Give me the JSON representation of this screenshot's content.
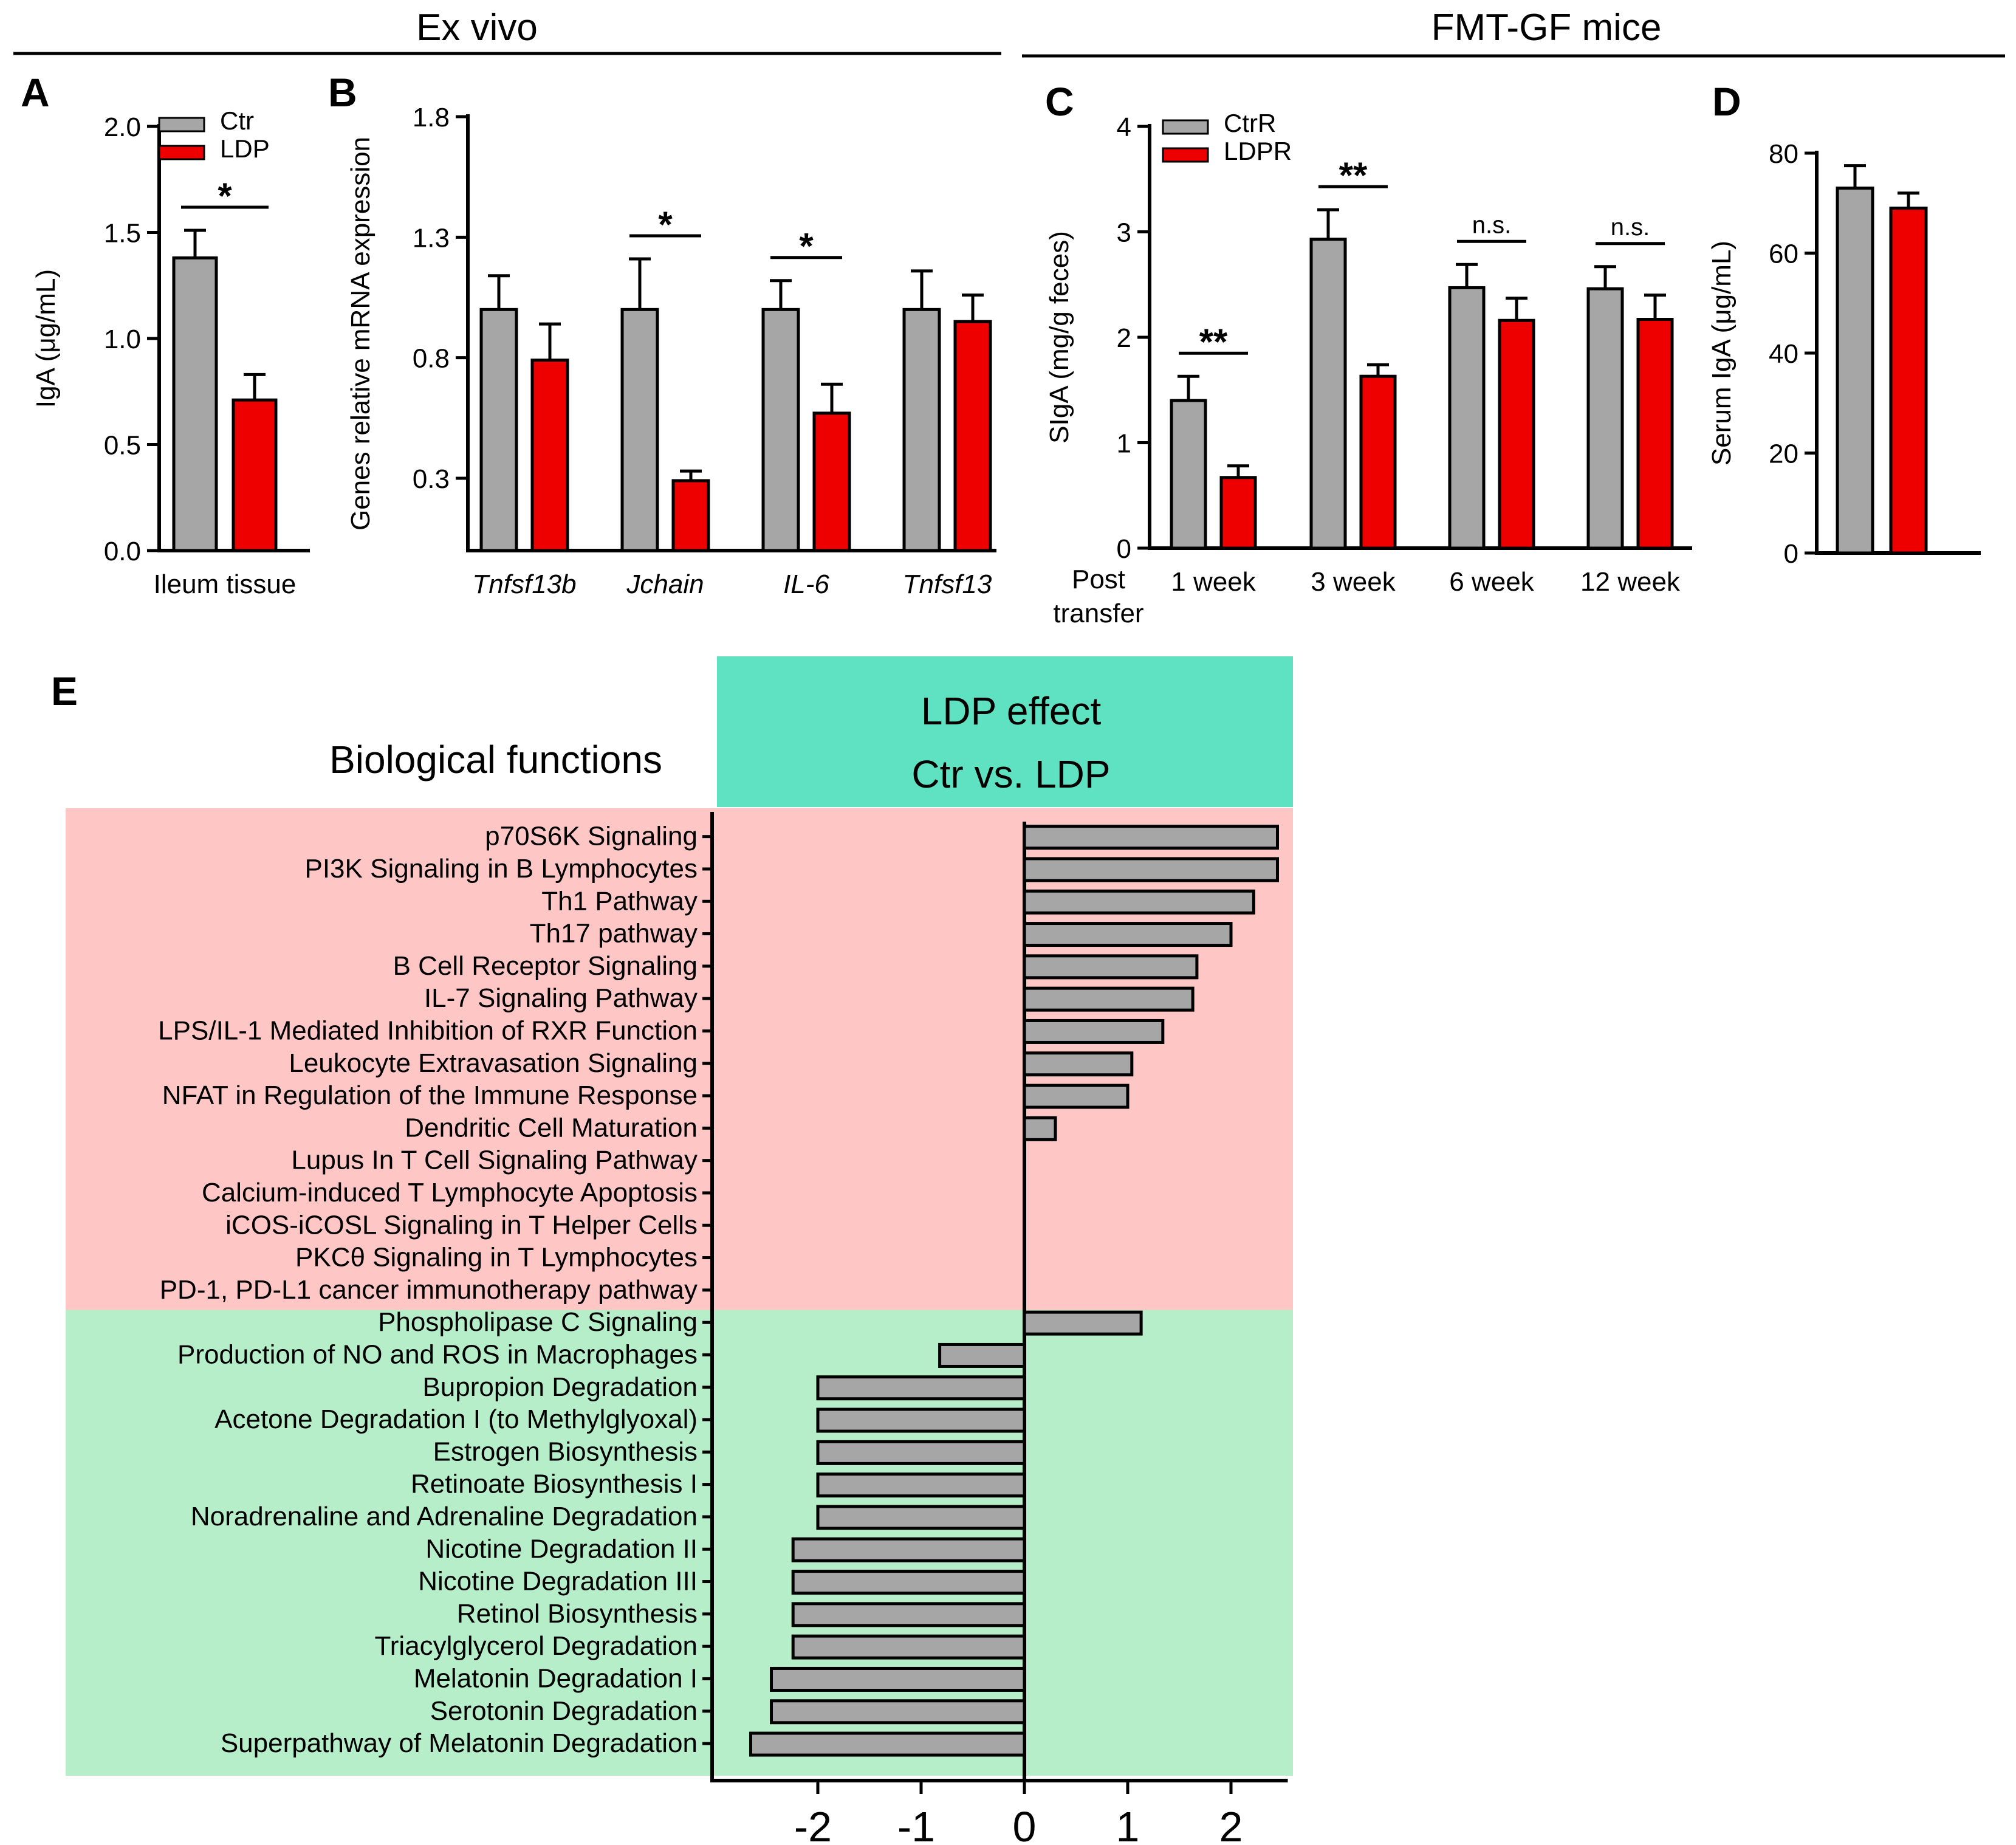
{
  "header": {
    "left_title": "Ex vivo",
    "right_title": "FMT-GF mice"
  },
  "colors": {
    "gray": "#a6a6a6",
    "red": "#ee0000",
    "upregulated_band": "#ffc6c6",
    "downregulated_band": "#b5eec8",
    "teal_header": "#5fe2c2"
  },
  "chart_data": [
    {
      "panel": "A",
      "type": "bar",
      "categories": [
        "Ileum tissue"
      ],
      "series": [
        {
          "name": "Ctr",
          "color": "gray",
          "values": [
            1.38
          ],
          "errors": [
            0.13
          ]
        },
        {
          "name": "LDP",
          "color": "red",
          "values": [
            0.71
          ],
          "errors": [
            0.12
          ]
        }
      ],
      "ylabel": "IgA (μg/mL)",
      "ylim": [
        0,
        2.0
      ],
      "yticks": [
        0.0,
        0.5,
        1.0,
        1.5,
        2.0
      ],
      "ytick_labels": [
        "0.0",
        "0.5",
        "1.0",
        "1.5",
        "2.0"
      ],
      "significance": [
        "*"
      ],
      "legend": [
        "Ctr",
        "LDP"
      ]
    },
    {
      "panel": "B",
      "type": "bar",
      "categories": [
        "Tnfsf13b",
        "Jchain",
        "IL-6",
        "Tnfsf13"
      ],
      "categories_italic": true,
      "series": [
        {
          "name": "Ctr",
          "color": "gray",
          "values": [
            1.0,
            1.0,
            1.0,
            1.0
          ],
          "errors": [
            0.14,
            0.21,
            0.12,
            0.16
          ]
        },
        {
          "name": "LDP",
          "color": "red",
          "values": [
            0.79,
            0.29,
            0.57,
            0.95
          ],
          "errors": [
            0.15,
            0.04,
            0.12,
            0.11
          ]
        }
      ],
      "ylabel": "Genes relative mRNA expression",
      "ylim": [
        0,
        1.8
      ],
      "yticks": [
        0.3,
        0.8,
        1.3,
        1.8
      ],
      "ytick_labels": [
        "0.3",
        "0.8",
        "1.3",
        "1.8"
      ],
      "significance": [
        "",
        "*",
        "*",
        ""
      ]
    },
    {
      "panel": "C",
      "type": "bar",
      "x_prefix_label": [
        "Post",
        "transfer"
      ],
      "categories": [
        "1 week",
        "3 week",
        "6 week",
        "12 week"
      ],
      "series": [
        {
          "name": "CtrR",
          "color": "gray",
          "values": [
            1.4,
            2.93,
            2.47,
            2.46
          ],
          "errors": [
            0.23,
            0.28,
            0.22,
            0.21
          ]
        },
        {
          "name": "LDPR",
          "color": "red",
          "values": [
            0.67,
            1.63,
            2.16,
            2.17
          ],
          "errors": [
            0.11,
            0.11,
            0.21,
            0.23
          ]
        }
      ],
      "ylabel": "SIgA (mg/g feces)",
      "ylim": [
        0,
        4
      ],
      "yticks": [
        0,
        1,
        2,
        3,
        4
      ],
      "ytick_labels": [
        "0",
        "1",
        "2",
        "3",
        "4"
      ],
      "significance": [
        "**",
        "**",
        "n.s.",
        "n.s."
      ],
      "legend": [
        "CtrR",
        "LDPR"
      ]
    },
    {
      "panel": "D",
      "type": "bar",
      "categories": [
        ""
      ],
      "series": [
        {
          "name": "Ctr",
          "color": "gray",
          "values": [
            73
          ],
          "errors": [
            4.5
          ]
        },
        {
          "name": "LDP",
          "color": "red",
          "values": [
            69
          ],
          "errors": [
            3
          ]
        }
      ],
      "ylabel": "Serum IgA (μg/mL)",
      "ylim": [
        0,
        80
      ],
      "yticks": [
        0,
        20,
        40,
        60,
        80
      ],
      "ytick_labels": [
        "0",
        "20",
        "40",
        "60",
        "80"
      ]
    },
    {
      "panel": "E",
      "type": "bar",
      "orientation": "horizontal",
      "row_header": "Biological functions",
      "column_header": [
        "LDP effect",
        "Ctr vs. LDP"
      ],
      "categories": [
        "p70S6K Signaling",
        "PI3K Signaling in B Lymphocytes",
        "Th1 Pathway",
        "Th17 pathway",
        "B Cell Receptor Signaling",
        "IL-7 Signaling Pathway",
        "LPS/IL-1 Mediated Inhibition of RXR Function",
        "Leukocyte Extravasation Signaling",
        "NFAT in Regulation of the Immune Response",
        "Dendritic Cell Maturation",
        "Lupus In T Cell Signaling Pathway",
        "Calcium-induced T Lymphocyte Apoptosis",
        "iCOS-iCOSL Signaling in T Helper Cells",
        "PKCθ Signaling in T Lymphocytes",
        "PD-1, PD-L1 cancer immunotherapy pathway",
        "Phospholipase C Signaling",
        "Production of NO and ROS in Macrophages",
        "Bupropion Degradation",
        "Acetone Degradation I (to Methylglyoxal)",
        "Estrogen Biosynthesis",
        "Retinoate Biosynthesis I",
        "Noradrenaline and Adrenaline Degradation",
        "Nicotine Degradation II",
        "Nicotine Degradation III",
        "Retinol Biosynthesis",
        "Triacylglycerol Degradation",
        "Melatonin Degradation I",
        "Serotonin Degradation",
        "Superpathway of Melatonin Degradation"
      ],
      "values": [
        2.45,
        2.45,
        2.22,
        2.0,
        1.67,
        1.63,
        1.34,
        1.04,
        1.0,
        0.3,
        0,
        0,
        0,
        0,
        0,
        1.13,
        -0.82,
        -2.0,
        -2.0,
        -2.0,
        -2.0,
        -2.0,
        -2.24,
        -2.24,
        -2.24,
        -2.24,
        -2.45,
        -2.45,
        -2.65
      ],
      "group_boundaries": {
        "upregulated_rows": 15,
        "downregulated_rows": 14
      },
      "xlim": [
        -2.9,
        2.55
      ],
      "xticks": [
        -2,
        -1,
        0,
        1,
        2
      ],
      "xtick_labels": [
        "-2",
        "-1",
        "0",
        "1",
        "2"
      ]
    }
  ],
  "panel_labels": [
    "A",
    "B",
    "C",
    "D",
    "E"
  ]
}
